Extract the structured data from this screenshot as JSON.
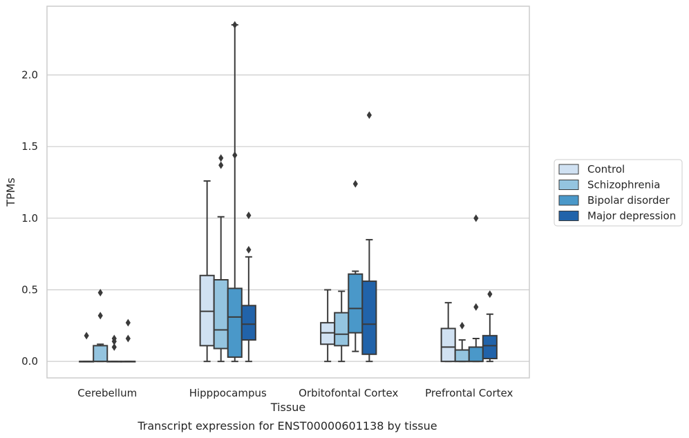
{
  "chart_data": {
    "type": "box",
    "caption": "Transcript expression for ENST00000601138 by tissue",
    "xlabel": "Tissue",
    "ylabel": "TPMs",
    "ylim": [
      -0.115,
      2.48
    ],
    "yticks": [
      0.0,
      0.5,
      1.0,
      1.5,
      2.0
    ],
    "ytick_labels": [
      "0.0",
      "0.5",
      "1.0",
      "1.5",
      "2.0"
    ],
    "grid": "horizontal",
    "legend_position": "right",
    "categories": [
      "Cerebellum",
      "Hipppocampus",
      "Orbitofontal Cortex",
      "Prefrontal Cortex"
    ],
    "series": [
      {
        "name": "Control",
        "color": "#d0e1f2",
        "boxes": [
          {
            "q1": 0.0,
            "median": 0.0,
            "q3": 0.0,
            "whisker_low": 0.0,
            "whisker_high": 0.0,
            "outliers": [
              0.18
            ]
          },
          {
            "q1": 0.11,
            "median": 0.35,
            "q3": 0.6,
            "whisker_low": 0.0,
            "whisker_high": 1.26,
            "outliers": []
          },
          {
            "q1": 0.12,
            "median": 0.2,
            "q3": 0.27,
            "whisker_low": 0.0,
            "whisker_high": 0.5,
            "outliers": []
          },
          {
            "q1": 0.0,
            "median": 0.1,
            "q3": 0.23,
            "whisker_low": 0.0,
            "whisker_high": 0.41,
            "outliers": []
          }
        ]
      },
      {
        "name": "Schizophrenia",
        "color": "#94c4df",
        "boxes": [
          {
            "q1": 0.0,
            "median": 0.0,
            "q3": 0.11,
            "whisker_low": 0.0,
            "whisker_high": 0.12,
            "outliers": [
              0.32,
              0.48
            ]
          },
          {
            "q1": 0.09,
            "median": 0.22,
            "q3": 0.57,
            "whisker_low": 0.0,
            "whisker_high": 1.01,
            "outliers": [
              1.37,
              1.42
            ]
          },
          {
            "q1": 0.11,
            "median": 0.19,
            "q3": 0.34,
            "whisker_low": 0.0,
            "whisker_high": 0.49,
            "outliers": []
          },
          {
            "q1": 0.0,
            "median": 0.0,
            "q3": 0.08,
            "whisker_low": 0.0,
            "whisker_high": 0.15,
            "outliers": [
              0.25
            ]
          }
        ]
      },
      {
        "name": "Bipolar disorder",
        "color": "#4a98c9",
        "boxes": [
          {
            "q1": 0.0,
            "median": 0.0,
            "q3": 0.0,
            "whisker_low": 0.0,
            "whisker_high": 0.0,
            "outliers": [
              0.1,
              0.14,
              0.16
            ]
          },
          {
            "q1": 0.03,
            "median": 0.31,
            "q3": 0.51,
            "whisker_low": 0.0,
            "whisker_high": 2.35,
            "outliers": [
              1.44,
              2.35
            ]
          },
          {
            "q1": 0.2,
            "median": 0.37,
            "q3": 0.61,
            "whisker_low": 0.07,
            "whisker_high": 0.63,
            "outliers": [
              1.24
            ]
          },
          {
            "q1": 0.0,
            "median": 0.0,
            "q3": 0.1,
            "whisker_low": 0.0,
            "whisker_high": 0.16,
            "outliers": [
              0.38,
              1.0
            ]
          }
        ]
      },
      {
        "name": "Major depression",
        "color": "#2163aa",
        "boxes": [
          {
            "q1": 0.0,
            "median": 0.0,
            "q3": 0.0,
            "whisker_low": 0.0,
            "whisker_high": 0.0,
            "outliers": [
              0.16,
              0.27
            ]
          },
          {
            "q1": 0.15,
            "median": 0.26,
            "q3": 0.39,
            "whisker_low": 0.0,
            "whisker_high": 0.73,
            "outliers": [
              0.78,
              1.02
            ]
          },
          {
            "q1": 0.05,
            "median": 0.26,
            "q3": 0.56,
            "whisker_low": 0.0,
            "whisker_high": 0.85,
            "outliers": [
              1.72
            ]
          },
          {
            "q1": 0.02,
            "median": 0.11,
            "q3": 0.18,
            "whisker_low": 0.0,
            "whisker_high": 0.33,
            "outliers": [
              0.47
            ]
          }
        ]
      }
    ]
  }
}
